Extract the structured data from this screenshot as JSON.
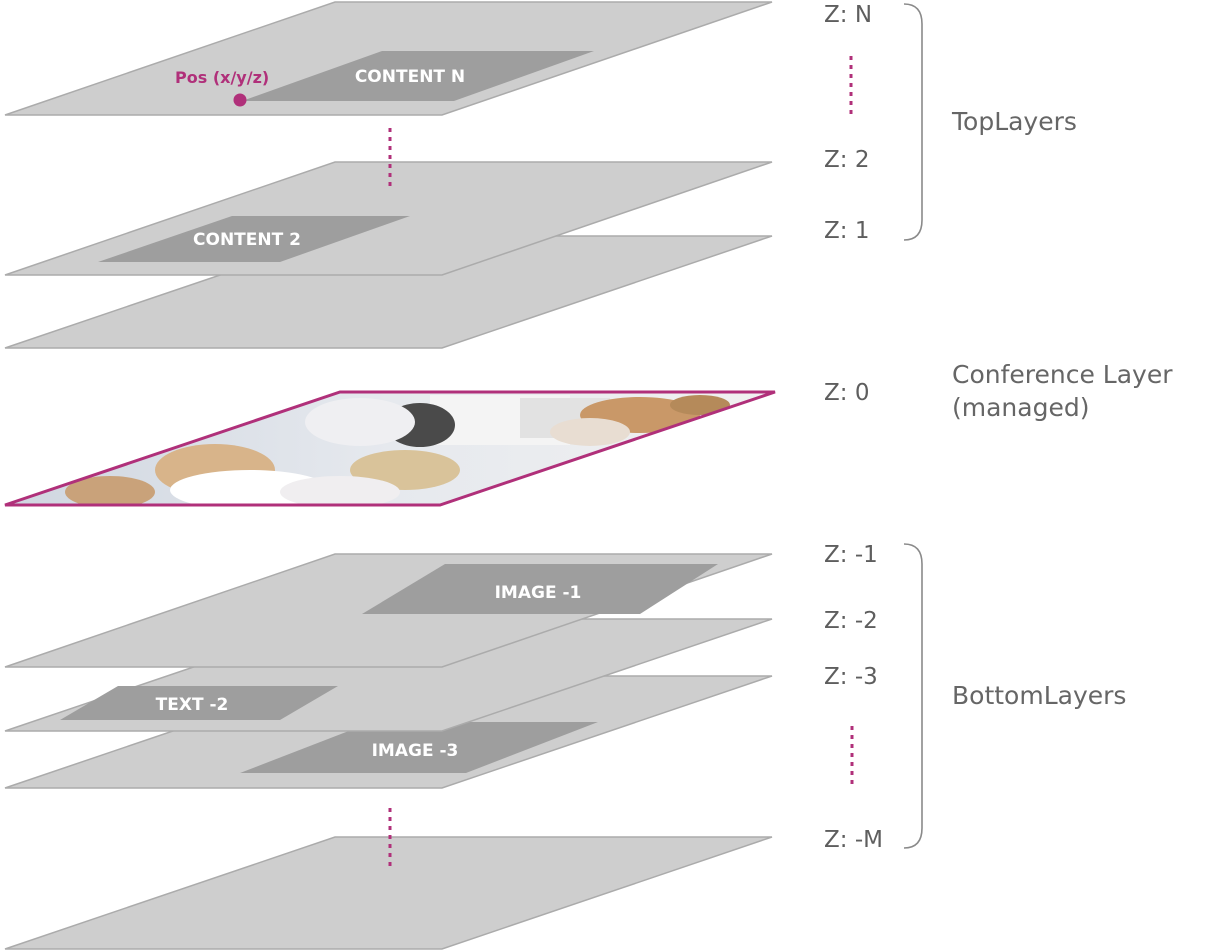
{
  "layers_top": {
    "z_labels": [
      "Z: N",
      "Z: 2",
      "Z: 1"
    ],
    "group_label": "TopLayers",
    "content_n": "CONTENT N",
    "content_2": "CONTENT 2",
    "pos_label": "Pos (x/y/z)"
  },
  "layers_conference": {
    "z_label": "Z: 0",
    "group_label_line1": "Conference Layer",
    "group_label_line2": "(managed)"
  },
  "layers_bottom": {
    "z_labels": [
      "Z: -1",
      "Z: -2",
      "Z: -3",
      "Z: -M"
    ],
    "group_label": "BottomLayers",
    "image_1": "IMAGE -1",
    "text_2": "TEXT -2",
    "image_3": "IMAGE -3"
  },
  "colors": {
    "layer_fill": "#cecece",
    "content_fill": "#9e9e9e",
    "accent": "#b0307a"
  }
}
